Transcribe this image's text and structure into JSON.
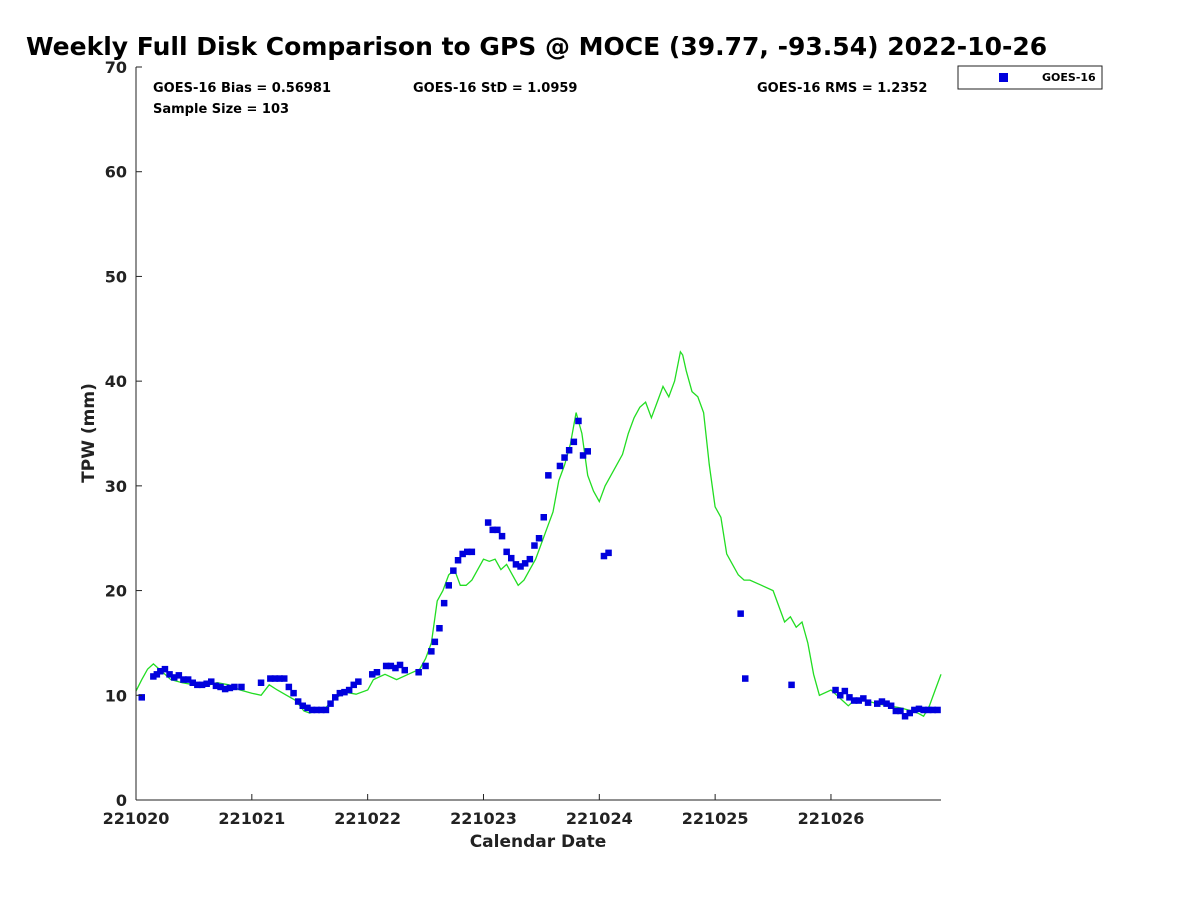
{
  "chart_data": {
    "type": "scatter",
    "title": "Weekly Full Disk Comparison to GPS @ MOCE (39.77, -93.54) 2022-10-26",
    "xlabel": "Calendar Date",
    "ylabel": "TPW (mm)",
    "xlim": [
      0,
      6.95
    ],
    "ylim": [
      0,
      70
    ],
    "xticks": [
      0,
      1,
      2,
      3,
      4,
      5,
      6
    ],
    "xtick_labels": [
      "221020",
      "221021",
      "221022",
      "221023",
      "221024",
      "221025",
      "221026"
    ],
    "yticks": [
      0,
      10,
      20,
      30,
      40,
      50,
      60,
      70
    ],
    "ytick_labels": [
      "0",
      "10",
      "20",
      "30",
      "40",
      "50",
      "60",
      "70"
    ],
    "stats": {
      "bias": "GOES-16 Bias = 0.56981",
      "std": "GOES-16 StD = 1.0959",
      "rms": "GOES-16 RMS = 1.2352",
      "sample": "Sample Size = 103"
    },
    "legend": {
      "label": "GOES-16",
      "position": "top-right outside"
    },
    "colors": {
      "goes": "#0000dd",
      "gps": "#22dd22",
      "axis": "#222222"
    },
    "series": [
      {
        "name": "GPS",
        "kind": "line",
        "x": [
          0.0,
          0.05,
          0.1,
          0.15,
          0.2,
          0.25,
          0.3,
          0.4,
          0.5,
          0.6,
          0.7,
          0.8,
          0.9,
          1.0,
          1.08,
          1.15,
          1.22,
          1.3,
          1.38,
          1.45,
          1.5,
          1.55,
          1.6,
          1.7,
          1.8,
          1.9,
          2.0,
          2.05,
          2.15,
          2.25,
          2.35,
          2.45,
          2.5,
          2.55,
          2.6,
          2.65,
          2.7,
          2.75,
          2.8,
          2.85,
          2.9,
          3.0,
          3.05,
          3.1,
          3.15,
          3.2,
          3.25,
          3.3,
          3.35,
          3.4,
          3.45,
          3.5,
          3.55,
          3.6,
          3.65,
          3.7,
          3.75,
          3.8,
          3.85,
          3.9,
          3.95,
          4.0,
          4.05,
          4.1,
          4.15,
          4.2,
          4.25,
          4.3,
          4.35,
          4.4,
          4.45,
          4.5,
          4.55,
          4.6,
          4.65,
          4.7,
          4.72,
          4.75,
          4.8,
          4.85,
          4.9,
          4.95,
          5.0,
          5.05,
          5.1,
          5.15,
          5.2,
          5.25,
          5.3,
          5.4,
          5.5,
          5.6,
          5.65,
          5.7,
          5.75,
          5.8,
          5.85,
          5.9,
          6.0,
          6.05,
          6.1,
          6.15,
          6.2,
          6.3,
          6.4,
          6.5,
          6.6,
          6.7,
          6.75,
          6.8,
          6.85,
          6.9,
          6.95
        ],
        "y": [
          10.4,
          11.5,
          12.5,
          13.0,
          12.5,
          12.0,
          11.5,
          11.2,
          11.0,
          10.9,
          11.2,
          11.0,
          10.5,
          10.2,
          10.0,
          11.0,
          10.5,
          10.0,
          9.5,
          8.5,
          8.3,
          8.5,
          8.4,
          9.5,
          10.3,
          10.1,
          10.5,
          11.5,
          12.0,
          11.5,
          12.0,
          12.5,
          13.5,
          15.0,
          19.0,
          20.0,
          21.5,
          22.0,
          20.5,
          20.5,
          21.0,
          23.0,
          22.8,
          23.0,
          22.0,
          22.5,
          21.5,
          20.5,
          21.0,
          22.0,
          23.0,
          24.5,
          26.0,
          27.5,
          30.5,
          32.0,
          34.0,
          37.0,
          35.0,
          31.0,
          29.5,
          28.5,
          30.0,
          31.0,
          32.0,
          33.0,
          35.0,
          36.5,
          37.5,
          38.0,
          36.5,
          38.0,
          39.5,
          38.5,
          40.0,
          42.8,
          42.5,
          41.0,
          39.0,
          38.5,
          37.0,
          32.0,
          28.0,
          27.0,
          23.5,
          22.5,
          21.5,
          21.0,
          21.0,
          20.5,
          20.0,
          17.0,
          17.5,
          16.5,
          17.0,
          15.0,
          12.0,
          10.0,
          10.5,
          10.0,
          9.5,
          9.0,
          9.5,
          9.5,
          9.2,
          9.0,
          8.8,
          8.5,
          8.3,
          8.0,
          9.0,
          10.5,
          12.0
        ]
      },
      {
        "name": "GOES-16",
        "kind": "scatter",
        "x": [
          0.05,
          0.15,
          0.18,
          0.21,
          0.25,
          0.29,
          0.33,
          0.37,
          0.41,
          0.45,
          0.49,
          0.53,
          0.57,
          0.61,
          0.65,
          0.69,
          0.73,
          0.77,
          0.81,
          0.85,
          0.91,
          1.08,
          1.16,
          1.2,
          1.24,
          1.28,
          1.32,
          1.36,
          1.4,
          1.44,
          1.48,
          1.52,
          1.56,
          1.6,
          1.64,
          1.68,
          1.72,
          1.76,
          1.8,
          1.84,
          1.88,
          1.92,
          2.04,
          2.08,
          2.16,
          2.2,
          2.24,
          2.28,
          2.32,
          2.44,
          2.5,
          2.55,
          2.58,
          2.62,
          2.66,
          2.7,
          2.74,
          2.78,
          2.82,
          2.86,
          2.9,
          3.04,
          3.08,
          3.12,
          3.16,
          3.2,
          3.24,
          3.28,
          3.32,
          3.36,
          3.4,
          3.44,
          3.48,
          3.52,
          3.56,
          3.66,
          3.7,
          3.74,
          3.78,
          3.82,
          3.86,
          3.9,
          4.04,
          4.08,
          5.22,
          5.26,
          5.66,
          6.04,
          6.08,
          6.12,
          6.16,
          6.2,
          6.24,
          6.28,
          6.32,
          6.4,
          6.44,
          6.48,
          6.52,
          6.56,
          6.6,
          6.64,
          6.68,
          6.72,
          6.76,
          6.8,
          6.84,
          6.88,
          6.92
        ],
        "y": [
          9.8,
          11.8,
          12.0,
          12.3,
          12.5,
          12.0,
          11.7,
          11.9,
          11.5,
          11.5,
          11.2,
          11.0,
          11.0,
          11.1,
          11.3,
          10.9,
          10.8,
          10.6,
          10.7,
          10.8,
          10.8,
          11.2,
          11.6,
          11.6,
          11.6,
          11.6,
          10.8,
          10.2,
          9.4,
          9.0,
          8.8,
          8.6,
          8.6,
          8.6,
          8.6,
          9.2,
          9.8,
          10.2,
          10.3,
          10.5,
          11.0,
          11.3,
          12.0,
          12.2,
          12.8,
          12.8,
          12.6,
          12.9,
          12.4,
          12.2,
          12.8,
          14.2,
          15.1,
          16.4,
          18.8,
          20.5,
          21.9,
          22.9,
          23.5,
          23.7,
          23.7,
          26.5,
          25.8,
          25.8,
          25.2,
          23.7,
          23.1,
          22.5,
          22.3,
          22.6,
          23.0,
          24.3,
          25.0,
          27.0,
          31.0,
          31.9,
          32.7,
          33.4,
          34.2,
          36.2,
          32.9,
          33.3,
          23.3,
          23.6,
          17.8,
          11.6,
          11.0,
          10.5,
          10.0,
          10.4,
          9.8,
          9.5,
          9.5,
          9.7,
          9.3,
          9.2,
          9.4,
          9.2,
          9.0,
          8.5,
          8.5,
          8.0,
          8.3,
          8.6,
          8.7,
          8.6,
          8.6,
          8.6,
          8.6
        ]
      }
    ]
  }
}
